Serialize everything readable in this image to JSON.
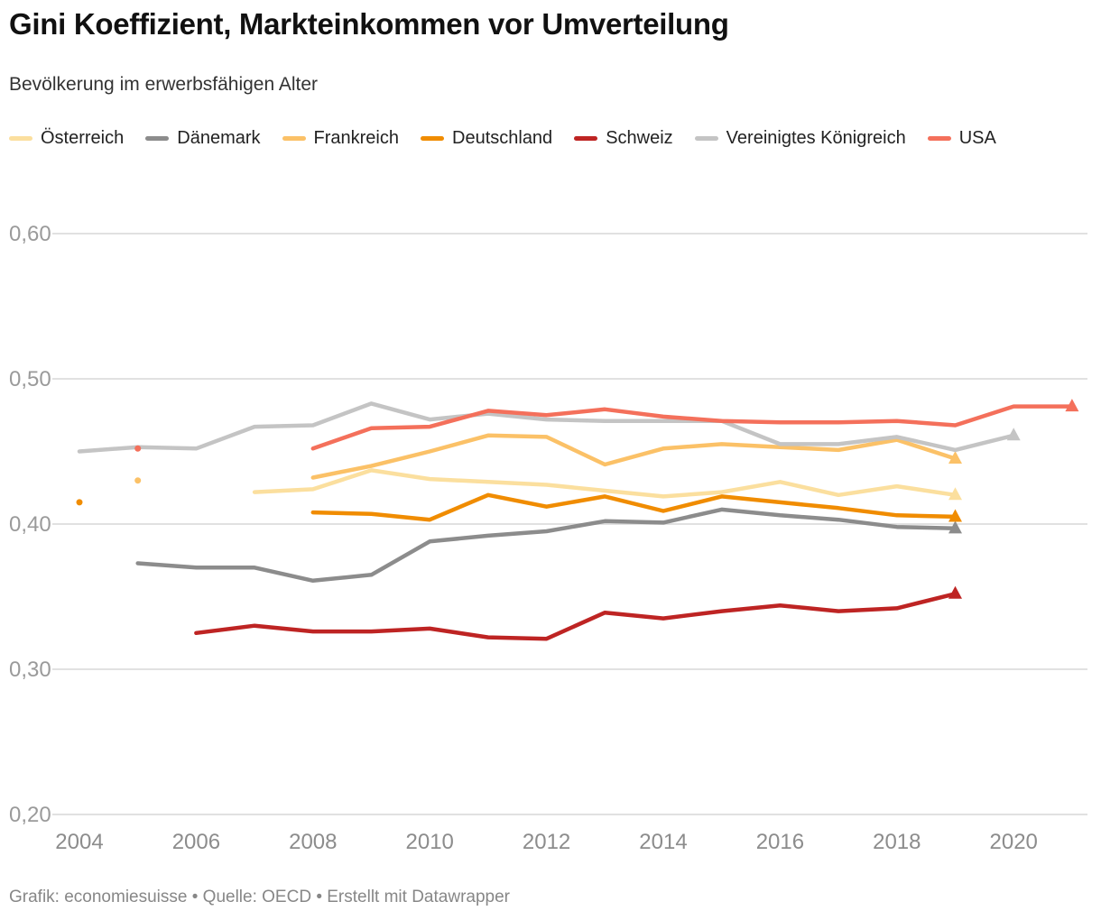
{
  "header": {
    "title": "Gini Koeffizient, Markteinkommen vor Umverteilung",
    "subtitle": "Bevölkerung im erwerbsfähigen Alter"
  },
  "legend": [
    {
      "label": "Österreich",
      "color": "#FBDF9E"
    },
    {
      "label": "Dänemark",
      "color": "#8C8C8C"
    },
    {
      "label": "Frankreich",
      "color": "#FBC167"
    },
    {
      "label": "Deutschland",
      "color": "#F08C00"
    },
    {
      "label": "Schweiz",
      "color": "#BE2423"
    },
    {
      "label": "Vereinigtes Königreich",
      "color": "#C4C4C4"
    },
    {
      "label": "USA",
      "color": "#F4705B"
    }
  ],
  "footer": {
    "text": "Grafik: economiesuisse • Quelle: OECD • Erstellt mit Datawrapper"
  },
  "chart_data": {
    "type": "line",
    "title": "Gini Koeffizient, Markteinkommen vor Umverteilung",
    "subtitle": "Bevölkerung im erwerbsfähigen Alter",
    "xlabel": "",
    "ylabel": "",
    "xlim": [
      2004,
      2021
    ],
    "ylim": [
      0.2,
      0.6
    ],
    "grid": true,
    "legend_position": "top",
    "x_ticks": [
      2004,
      2006,
      2008,
      2010,
      2012,
      2014,
      2016,
      2018,
      2020
    ],
    "x_tick_labels": [
      "2004",
      "2006",
      "2008",
      "2010",
      "2012",
      "2014",
      "2016",
      "2018",
      "2020"
    ],
    "y_ticks": [
      0.2,
      0.3,
      0.4,
      0.5,
      0.6
    ],
    "y_tick_labels": [
      "0,20",
      "0,30",
      "0,40",
      "0,50",
      "0,60"
    ],
    "series": [
      {
        "name": "Österreich",
        "color": "#FBDF9E",
        "line": [
          [
            2007,
            0.422
          ],
          [
            2008,
            0.424
          ],
          [
            2009,
            0.437
          ],
          [
            2010,
            0.431
          ],
          [
            2011,
            0.429
          ],
          [
            2012,
            0.427
          ],
          [
            2013,
            0.423
          ],
          [
            2014,
            0.419
          ],
          [
            2015,
            0.422
          ],
          [
            2016,
            0.429
          ],
          [
            2017,
            0.42
          ],
          [
            2018,
            0.426
          ],
          [
            2019,
            0.42
          ]
        ],
        "dots": [],
        "end_marker": "triangle-up"
      },
      {
        "name": "Dänemark",
        "color": "#8C8C8C",
        "line": [
          [
            2005,
            0.373
          ],
          [
            2006,
            0.37
          ],
          [
            2007,
            0.37
          ],
          [
            2008,
            0.361
          ],
          [
            2009,
            0.365
          ],
          [
            2010,
            0.388
          ],
          [
            2011,
            0.392
          ],
          [
            2012,
            0.395
          ],
          [
            2013,
            0.402
          ],
          [
            2014,
            0.401
          ],
          [
            2015,
            0.41
          ],
          [
            2016,
            0.406
          ],
          [
            2017,
            0.403
          ],
          [
            2018,
            0.398
          ],
          [
            2019,
            0.397
          ]
        ],
        "dots": [],
        "end_marker": "triangle-up"
      },
      {
        "name": "Frankreich",
        "color": "#FBC167",
        "line": [
          [
            2008,
            0.432
          ],
          [
            2009,
            0.44
          ],
          [
            2010,
            0.45
          ],
          [
            2011,
            0.461
          ],
          [
            2012,
            0.46
          ],
          [
            2013,
            0.441
          ],
          [
            2014,
            0.452
          ],
          [
            2015,
            0.455
          ],
          [
            2016,
            0.453
          ],
          [
            2017,
            0.451
          ],
          [
            2018,
            0.458
          ],
          [
            2019,
            0.445
          ]
        ],
        "dots": [
          [
            2005,
            0.43
          ]
        ],
        "end_marker": "triangle-up"
      },
      {
        "name": "Deutschland",
        "color": "#F08C00",
        "line": [
          [
            2008,
            0.408
          ],
          [
            2009,
            0.407
          ],
          [
            2010,
            0.403
          ],
          [
            2011,
            0.42
          ],
          [
            2012,
            0.412
          ],
          [
            2013,
            0.419
          ],
          [
            2014,
            0.409
          ],
          [
            2015,
            0.419
          ],
          [
            2016,
            0.415
          ],
          [
            2017,
            0.411
          ],
          [
            2018,
            0.406
          ],
          [
            2019,
            0.405
          ]
        ],
        "dots": [
          [
            2004,
            0.415
          ]
        ],
        "end_marker": "triangle-up"
      },
      {
        "name": "Schweiz",
        "color": "#BE2423",
        "line": [
          [
            2006,
            0.325
          ],
          [
            2007,
            0.33
          ],
          [
            2008,
            0.326
          ],
          [
            2009,
            0.326
          ],
          [
            2010,
            0.328
          ],
          [
            2011,
            0.322
          ],
          [
            2012,
            0.321
          ],
          [
            2013,
            0.339
          ],
          [
            2014,
            0.335
          ],
          [
            2015,
            0.34
          ],
          [
            2016,
            0.344
          ],
          [
            2017,
            0.34
          ],
          [
            2018,
            0.342
          ],
          [
            2019,
            0.352
          ]
        ],
        "dots": [],
        "end_marker": "triangle-up"
      },
      {
        "name": "Vereinigtes Königreich",
        "color": "#C4C4C4",
        "line": [
          [
            2004,
            0.45
          ],
          [
            2005,
            0.453
          ],
          [
            2006,
            0.452
          ],
          [
            2007,
            0.467
          ],
          [
            2008,
            0.468
          ],
          [
            2009,
            0.483
          ],
          [
            2010,
            0.472
          ],
          [
            2011,
            0.476
          ],
          [
            2012,
            0.472
          ],
          [
            2013,
            0.471
          ],
          [
            2014,
            0.471
          ],
          [
            2015,
            0.471
          ],
          [
            2016,
            0.455
          ],
          [
            2017,
            0.455
          ],
          [
            2018,
            0.46
          ],
          [
            2019,
            0.451
          ],
          [
            2020,
            0.461
          ]
        ],
        "dots": [],
        "end_marker": "triangle-up"
      },
      {
        "name": "USA",
        "color": "#F4705B",
        "line": [
          [
            2008,
            0.452
          ],
          [
            2009,
            0.466
          ],
          [
            2010,
            0.467
          ],
          [
            2011,
            0.478
          ],
          [
            2012,
            0.475
          ],
          [
            2013,
            0.479
          ],
          [
            2014,
            0.474
          ],
          [
            2015,
            0.471
          ],
          [
            2016,
            0.47
          ],
          [
            2017,
            0.47
          ],
          [
            2018,
            0.471
          ],
          [
            2019,
            0.468
          ],
          [
            2020,
            0.481
          ],
          [
            2021,
            0.481
          ]
        ],
        "dots": [
          [
            2005,
            0.452
          ]
        ],
        "end_marker": "triangle-up"
      }
    ]
  }
}
